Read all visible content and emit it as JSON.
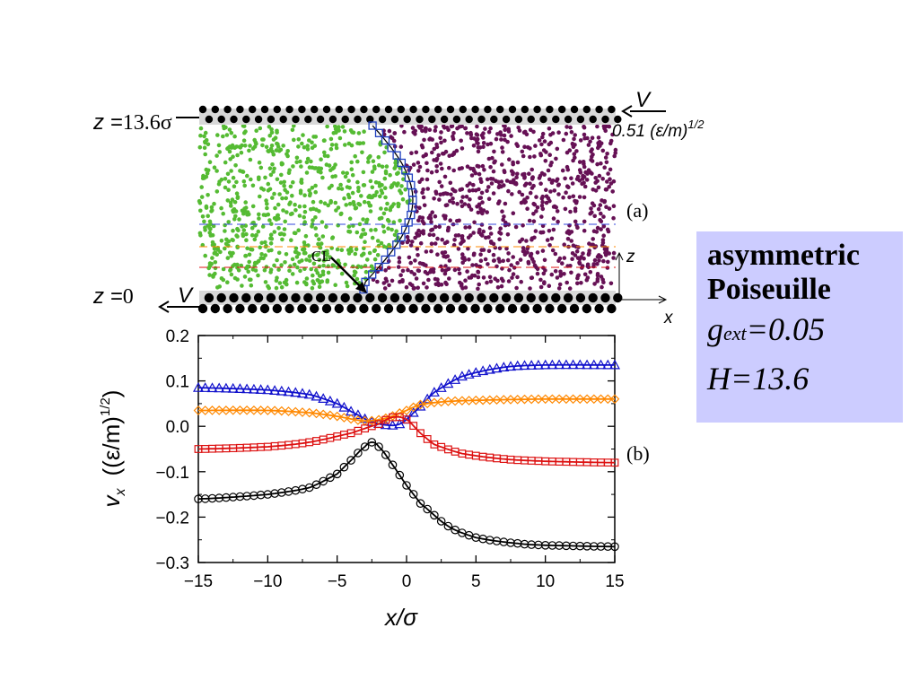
{
  "panel_a": {
    "label": "(a)",
    "z_top_label": "z =13.6σ",
    "z_top_prefix": "z =",
    "z_top_value": "13.6σ",
    "z_bottom_prefix": "z =",
    "z_bottom_value": "0",
    "v_top": "V",
    "v_bottom": "V",
    "speed_value": "0.51 (ε/m)",
    "speed_exponent": "1/2",
    "cl_label": "CL",
    "axis_z": "z",
    "axis_x": "x",
    "colors": {
      "wall": "#000000",
      "left_fluid": "#55bb33",
      "right_fluid": "#661155",
      "interface": "#1f3fbf"
    }
  },
  "panel_b_label": "(b)",
  "note": {
    "line1": "asymmetric",
    "line2": "Poiseuille",
    "g_symbol": "g",
    "g_sub": "ext",
    "g_value": "=0.05",
    "h_text": "H=13.6"
  },
  "chart_data": {
    "type": "line",
    "xlabel": "x/σ",
    "ylabel": "v",
    "ylabel_sub": "x",
    "ylabel_units": "((ε/m)",
    "ylabel_units_exp": "1/2",
    "xlim": [
      -15,
      15
    ],
    "ylim": [
      -0.3,
      0.2
    ],
    "x_ticks": [
      -15,
      -10,
      -5,
      0,
      5,
      10,
      15
    ],
    "x_tick_labels": [
      "−15",
      "−10",
      "−5",
      "0",
      "5",
      "10",
      "15"
    ],
    "y_ticks": [
      -0.3,
      -0.2,
      -0.1,
      0.0,
      0.1,
      0.2
    ],
    "y_tick_labels": [
      "−0.3",
      "−0.2",
      "−0.1",
      "0.0",
      "0.1",
      "0.2"
    ],
    "grid": false,
    "series": [
      {
        "marker": "triangle",
        "color": "#1111cc",
        "x": [
          -15,
          -10,
          -7,
          -5,
          -3.5,
          -2.5,
          -1.5,
          -0.5,
          0.5,
          2,
          4,
          7,
          10,
          15
        ],
        "y": [
          0.085,
          0.08,
          0.07,
          0.05,
          0.025,
          0.01,
          0.003,
          0.005,
          0.03,
          0.075,
          0.11,
          0.13,
          0.135,
          0.135
        ]
      },
      {
        "marker": "diamond",
        "color": "#ff8800",
        "x": [
          -15,
          -10,
          -7,
          -5,
          -3,
          -1.5,
          0,
          1,
          3,
          6,
          10,
          15
        ],
        "y": [
          0.035,
          0.035,
          0.03,
          0.022,
          0.012,
          0.018,
          0.035,
          0.048,
          0.055,
          0.058,
          0.06,
          0.06
        ]
      },
      {
        "marker": "square",
        "color": "#dd1111",
        "x": [
          -15,
          -10,
          -7,
          -4,
          -2,
          -1,
          0,
          1,
          2,
          4,
          7,
          10,
          15
        ],
        "y": [
          -0.05,
          -0.045,
          -0.035,
          -0.015,
          0.005,
          0.02,
          0.015,
          -0.015,
          -0.04,
          -0.06,
          -0.072,
          -0.077,
          -0.08
        ]
      },
      {
        "marker": "circle",
        "color": "#000000",
        "x": [
          -15,
          -10,
          -7,
          -5,
          -4,
          -3,
          -2.5,
          -2,
          -1,
          0,
          1,
          3,
          5,
          8,
          10,
          15
        ],
        "y": [
          -0.16,
          -0.15,
          -0.135,
          -0.105,
          -0.075,
          -0.045,
          -0.035,
          -0.045,
          -0.085,
          -0.13,
          -0.17,
          -0.22,
          -0.245,
          -0.258,
          -0.262,
          -0.265
        ]
      }
    ]
  }
}
